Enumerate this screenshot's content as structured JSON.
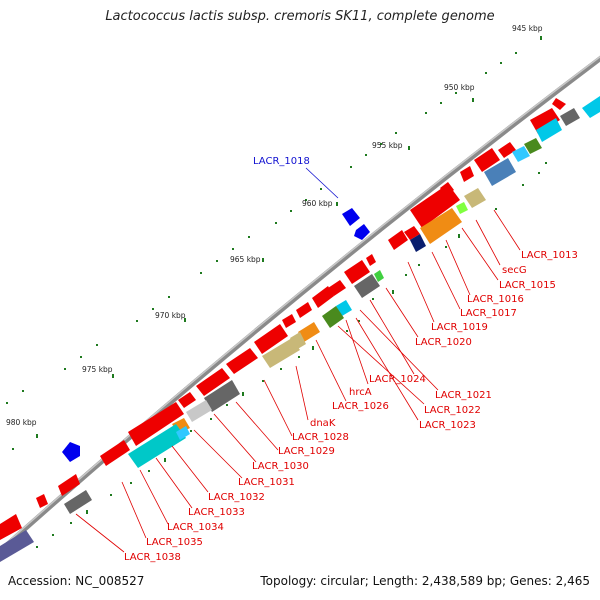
{
  "map": {
    "title": "Lactococcus lactis subsp. cremoris SK11, complete genome",
    "accession": "Accession: NC_008527",
    "summary": "Topology: circular; Length: 2,438,589 bp; Genes: 2,465"
  },
  "ticks": [
    {
      "label": "945 kbp"
    },
    {
      "label": "950 kbp"
    },
    {
      "label": "955 kbp"
    },
    {
      "label": "960 kbp"
    },
    {
      "label": "965 kbp"
    },
    {
      "label": "970 kbp"
    },
    {
      "label": "975 kbp"
    },
    {
      "label": "980 kbp"
    }
  ],
  "gene_labels": [
    {
      "name": "LACR_1018",
      "strand": "reverse"
    },
    {
      "name": "LACR_1013"
    },
    {
      "name": "secG"
    },
    {
      "name": "LACR_1015"
    },
    {
      "name": "LACR_1016"
    },
    {
      "name": "LACR_1017"
    },
    {
      "name": "LACR_1019"
    },
    {
      "name": "LACR_1020"
    },
    {
      "name": "LACR_1024"
    },
    {
      "name": "LACR_1021"
    },
    {
      "name": "hrcA"
    },
    {
      "name": "LACR_1022"
    },
    {
      "name": "LACR_1026"
    },
    {
      "name": "LACR_1023"
    },
    {
      "name": "dnaK"
    },
    {
      "name": "LACR_1028"
    },
    {
      "name": "LACR_1029"
    },
    {
      "name": "LACR_1030"
    },
    {
      "name": "LACR_1031"
    },
    {
      "name": "LACR_1032"
    },
    {
      "name": "LACR_1033"
    },
    {
      "name": "LACR_1034"
    },
    {
      "name": "LACR_1035"
    },
    {
      "name": "LACR_1038"
    }
  ],
  "colors": {
    "backbone": "#8a8a8a",
    "cds": "#ee0000",
    "reverse_cds": "#0000ee",
    "label_red": "#e00000",
    "label_blue": "#1010d0",
    "tick_green": "#1e7a1e"
  }
}
